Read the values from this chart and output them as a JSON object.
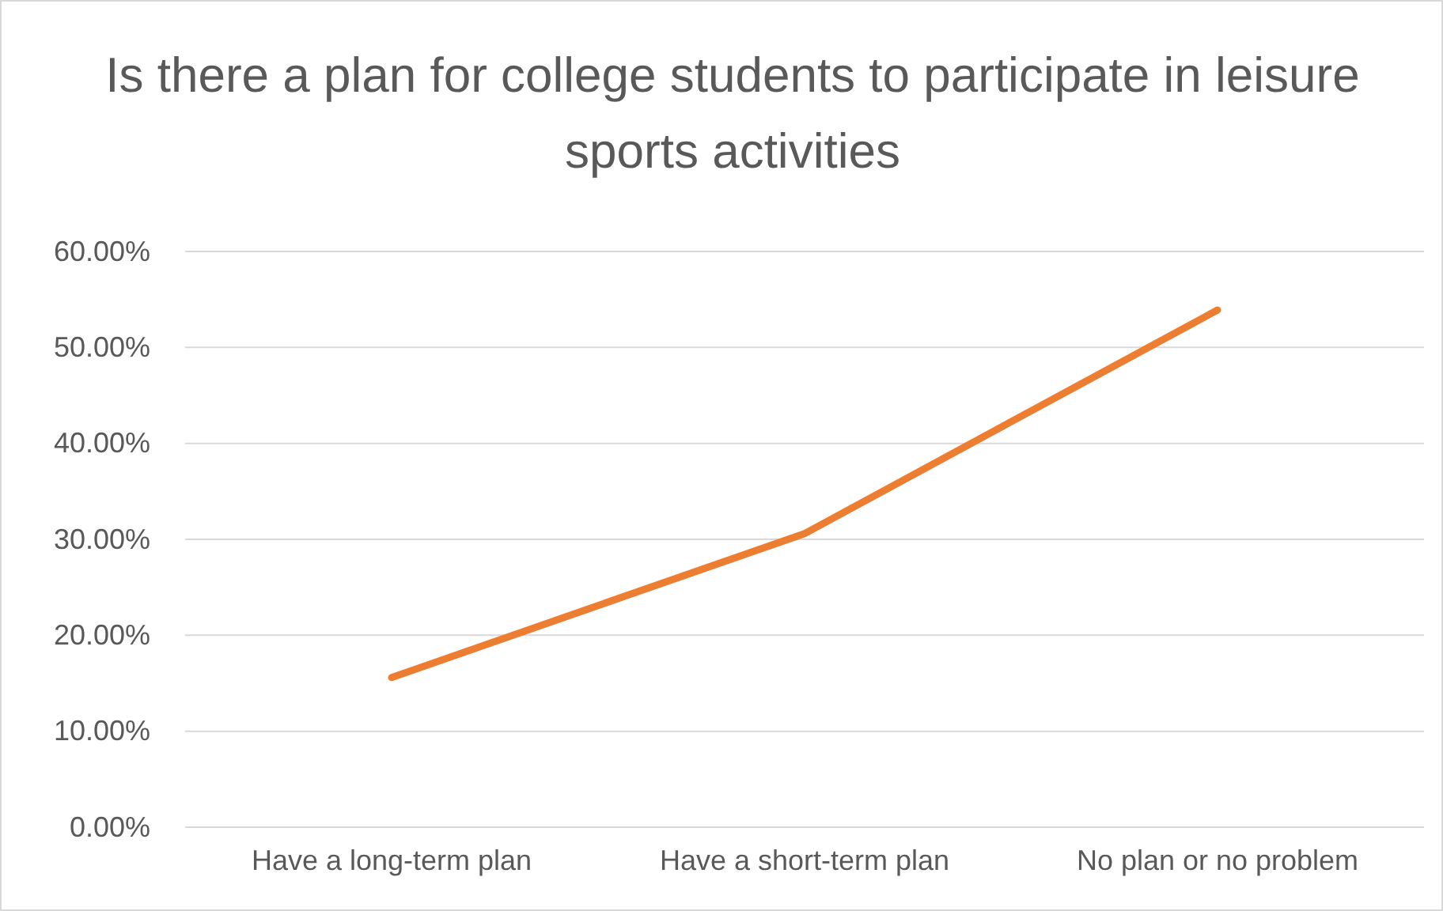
{
  "chart_data": {
    "type": "line",
    "title": "Is there a plan for college students to participate in leisure sports activities",
    "categories": [
      "Have a long-term plan",
      "Have a short-term plan",
      "No plan or no problem"
    ],
    "series": [
      {
        "color": "#ed7d31",
        "values": [
          15.6,
          30.6,
          53.9
        ]
      }
    ],
    "ylim": [
      0,
      60
    ],
    "yticks": [
      {
        "value": 0,
        "label": "0.00%"
      },
      {
        "value": 10,
        "label": "10.00%"
      },
      {
        "value": 20,
        "label": "20.00%"
      },
      {
        "value": 30,
        "label": "30.00%"
      },
      {
        "value": 40,
        "label": "40.00%"
      },
      {
        "value": 50,
        "label": "50.00%"
      },
      {
        "value": 60,
        "label": "60.00%"
      }
    ],
    "grid": "y",
    "marker": "none",
    "line_style": "solid"
  }
}
